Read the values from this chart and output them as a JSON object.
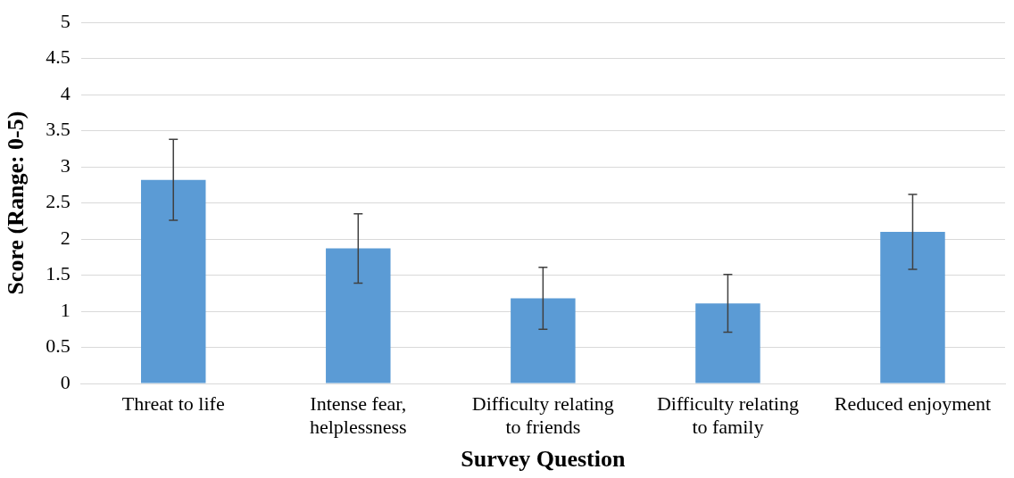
{
  "chart_data": {
    "type": "bar",
    "xlabel": "Survey Question",
    "ylabel": "Score (Range: 0-5)",
    "categories": [
      "Threat to life",
      "Intense fear, helplessness",
      "Difficulty relating to friends",
      "Difficulty relating to family",
      "Reduced enjoyment"
    ],
    "values": [
      2.82,
      1.87,
      1.18,
      1.11,
      2.1
    ],
    "errors": [
      0.56,
      0.48,
      0.43,
      0.4,
      0.52
    ],
    "color": "#5b9bd5",
    "ylim": [
      0,
      5
    ],
    "yticks": [
      0,
      0.5,
      1,
      1.5,
      2,
      2.5,
      3,
      3.5,
      4,
      4.5,
      5
    ],
    "grid": "y",
    "legend": false
  }
}
